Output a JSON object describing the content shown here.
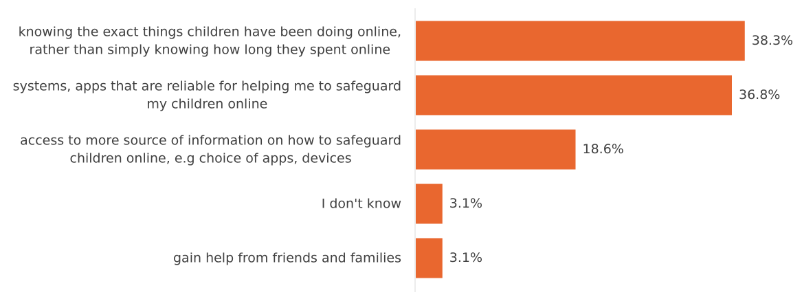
{
  "chart_data": {
    "type": "bar",
    "orientation": "horizontal",
    "categories": [
      [
        "knowing the exact things children have been doing online,",
        "rather than simply knowing how long they spent online"
      ],
      [
        "systems, apps that are reliable for helping me to safeguard",
        "my children online"
      ],
      [
        "access to more source of information on how to safeguard",
        "children online, e.g choice of apps, devices"
      ],
      [
        "I don't know"
      ],
      [
        "gain help from friends and families"
      ]
    ],
    "values": [
      38.3,
      36.8,
      18.6,
      3.1,
      3.1
    ],
    "value_labels": [
      "38.3%",
      "36.8%",
      "18.6%",
      "3.1%",
      "3.1%"
    ],
    "xlim": [
      0,
      40
    ],
    "grid": false,
    "bar_color": "#E9672F",
    "axis_color": "#D9D9D9",
    "text_color": "#404040"
  }
}
